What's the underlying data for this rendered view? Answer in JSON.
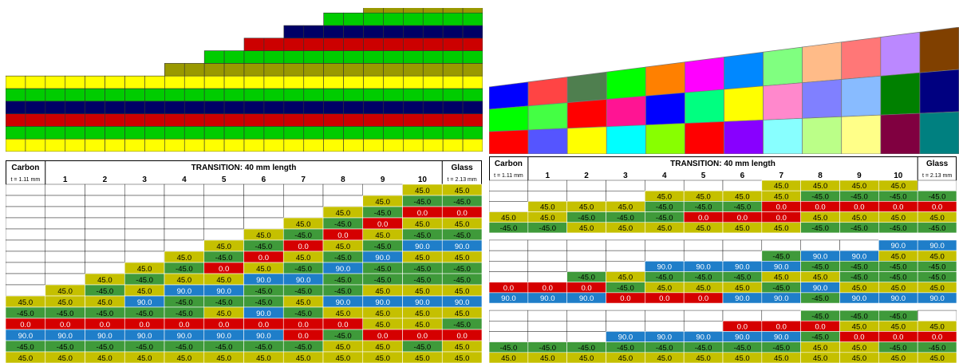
{
  "colors": {
    "Y": "#ffff00",
    "G": "#00cc00",
    "R": "#cc0000",
    "B": "#000066",
    "O": "#999900",
    "45": "#c5c000",
    "-45": "#3f9a3a",
    "0": "#d50000",
    "90": "#1f7ec9",
    "45lt": "#ffff33",
    "-45lt": "#8bcf5b",
    "90lt": "#2aa6e6",
    "white": "#ffffff",
    "black": "#000000"
  },
  "stack_diagram": {
    "columns": 24,
    "column_rise": [
      0,
      0,
      0,
      0,
      0,
      0,
      0,
      0,
      1,
      2,
      3,
      4,
      5,
      5,
      6,
      7,
      8,
      9,
      10,
      11,
      12,
      13,
      14,
      14
    ],
    "layers": [
      {
        "start": 0,
        "color": "Y"
      },
      {
        "start": 0,
        "color": "G"
      },
      {
        "start": 0,
        "color": "R"
      },
      {
        "start": 0,
        "color": "B"
      },
      {
        "start": 0,
        "color": "G"
      },
      {
        "start": 0,
        "color": "Y"
      },
      {
        "start": 8,
        "color": "O"
      },
      {
        "start": 10,
        "color": "G"
      },
      {
        "start": 12,
        "color": "R"
      },
      {
        "start": 14,
        "color": "B"
      },
      {
        "start": 16,
        "color": "G"
      },
      {
        "start": 18,
        "color": "O"
      },
      {
        "start": 20,
        "color": "G"
      },
      {
        "start": 22,
        "color": "R"
      },
      {
        "start": 23,
        "color": "O"
      }
    ]
  },
  "block_diagram": {
    "columns": 11,
    "rows": [
      [
        "#0000ff",
        "#ff4444",
        "#4f7f4f",
        "#00ff00",
        "#ff8000",
        "#ff00ff",
        "#0088ff",
        "#80ff80",
        "#ffbb88",
        "#ff7777",
        "#bb88ff",
        "#804000"
      ],
      [
        "#00ff00",
        "#44ff44",
        "#ff0000",
        "#ff1493",
        "#0000ff",
        "#00ff80",
        "#ffff00",
        "#ff88cc",
        "#8080ff",
        "#88bbff",
        "#008000",
        "#000080"
      ],
      [
        "#ff0000",
        "#5555ff",
        "#ffff00",
        "#00ffff",
        "#88ff00",
        "#ff0000",
        "#8800ff",
        "#88ffff",
        "#bbff88",
        "#ffff88",
        "#800040",
        "#008080"
      ]
    ]
  },
  "table_left": {
    "header": {
      "left": "Carbon",
      "middle": "TRANSITION: 40 mm length",
      "right": "Glass"
    },
    "subheader": {
      "left": "t = 1.11 mm",
      "cols": [
        "1",
        "2",
        "3",
        "4",
        "5",
        "6",
        "7",
        "8",
        "9",
        "10"
      ],
      "right": "t = 2.13 mm"
    },
    "rows": [
      [
        null,
        null,
        null,
        null,
        null,
        null,
        null,
        null,
        null,
        null,
        "45.0",
        "45.0"
      ],
      [
        null,
        null,
        null,
        null,
        null,
        null,
        null,
        null,
        null,
        "45.0",
        "-45.0",
        "-45.0"
      ],
      [
        null,
        null,
        null,
        null,
        null,
        null,
        null,
        null,
        "45.0",
        "-45.0",
        "0.0",
        "0.0"
      ],
      [
        null,
        null,
        null,
        null,
        null,
        null,
        null,
        "45.0",
        "-45.0",
        "0.0",
        "45.0",
        "45.0"
      ],
      [
        null,
        null,
        null,
        null,
        null,
        null,
        "45.0",
        "-45.0",
        "0.0",
        "45.0",
        "-45.0",
        "-45.0"
      ],
      [
        null,
        null,
        null,
        null,
        null,
        "45.0",
        "-45.0",
        "0.0",
        "45.0",
        "-45.0",
        "90.0",
        "90.0"
      ],
      [
        null,
        null,
        null,
        null,
        "45.0",
        "-45.0",
        "0.0",
        "45.0",
        "-45.0",
        "90.0",
        "45.0",
        "45.0"
      ],
      [
        null,
        null,
        null,
        "45.0",
        "-45.0",
        "0.0",
        "45.0",
        "-45.0",
        "90.0",
        "-45.0",
        "-45.0",
        "-45.0"
      ],
      [
        null,
        null,
        "45.0",
        "-45.0",
        "45.0",
        "45.0",
        "90.0",
        "90.0",
        "-45.0",
        "-45.0",
        "-45.0",
        "-45.0"
      ],
      [
        null,
        "45.0",
        "-45.0",
        "45.0",
        "90.0",
        "90.0",
        "-45.0",
        "-45.0",
        "-45.0",
        "45.0",
        "45.0",
        "45.0"
      ],
      [
        "45.0",
        "45.0",
        "45.0",
        "90.0",
        "-45.0",
        "-45.0",
        "-45.0",
        "45.0",
        "90.0",
        "90.0",
        "90.0",
        "90.0"
      ],
      [
        "-45.0",
        "-45.0",
        "-45.0",
        "-45.0",
        "-45.0",
        "45.0",
        "90.0",
        "-45.0",
        "45.0",
        "45.0",
        "45.0",
        "45.0"
      ],
      [
        "0.0",
        "0.0",
        "0.0",
        "0.0",
        "0.0",
        "0.0",
        "0.0",
        "0.0",
        "0.0",
        "45.0",
        "45.0",
        "-45.0"
      ],
      [
        "90.0",
        "90.0",
        "90.0",
        "90.0",
        "90.0",
        "90.0",
        "90.0",
        "0.0",
        "-45.0",
        "0.0",
        "0.0",
        "0.0"
      ],
      [
        "-45.0",
        "-45.0",
        "-45.0",
        "-45.0",
        "-45.0",
        "-45.0",
        "-45.0",
        "-45.0",
        "45.0",
        "45.0",
        "-45.0",
        "45.0"
      ],
      [
        "45.0",
        "45.0",
        "45.0",
        "45.0",
        "45.0",
        "45.0",
        "45.0",
        "45.0",
        "45.0",
        "45.0",
        "45.0",
        "45.0"
      ]
    ]
  },
  "table_right": {
    "header": {
      "left": "Carbon",
      "middle": "TRANSITION: 40 mm length",
      "right": "Glass"
    },
    "subheader": {
      "left": "t = 1.11 mm",
      "cols": [
        "1",
        "2",
        "3",
        "4",
        "5",
        "6",
        "7",
        "8",
        "9",
        "10"
      ],
      "right": "t = 2.13 mm"
    },
    "rows": [
      [
        null,
        null,
        null,
        null,
        null,
        null,
        null,
        "45.0",
        "45.0",
        "45.0",
        "45.0"
      ],
      [
        null,
        null,
        null,
        null,
        "45.0",
        "45.0",
        "45.0",
        "45.0",
        "-45.0",
        "-45.0",
        "-45.0",
        "-45.0"
      ],
      [
        null,
        "45.0",
        "45.0",
        "45.0",
        "-45.0",
        "-45.0",
        "-45.0",
        "0.0",
        "0.0",
        "0.0",
        "0.0",
        "0.0"
      ],
      [
        "45.0",
        "45.0",
        "-45.0",
        "-45.0",
        "-45.0",
        "0.0",
        "0.0",
        "0.0",
        "45.0",
        "45.0",
        "45.0",
        "45.0"
      ],
      [
        "-45.0",
        "-45.0",
        "45.0",
        "45.0",
        "45.0",
        "45.0",
        "45.0",
        "45.0",
        "-45.0",
        "-45.0",
        "-45.0",
        "-45.0"
      ],
      "gap",
      [
        null,
        null,
        null,
        null,
        null,
        null,
        null,
        null,
        null,
        null,
        "90.0",
        "90.0"
      ],
      [
        null,
        null,
        null,
        null,
        null,
        null,
        null,
        "-45.0",
        "90.0",
        "90.0",
        "45.0",
        "45.0"
      ],
      [
        null,
        null,
        null,
        null,
        "90.0",
        "90.0",
        "90.0",
        "90.0",
        "-45.0",
        "-45.0",
        "-45.0",
        "-45.0"
      ],
      [
        null,
        null,
        "-45.0",
        "45.0",
        "-45.0",
        "-45.0",
        "-45.0",
        "45.0",
        "45.0",
        "-45.0",
        "-45.0",
        "-45.0"
      ],
      [
        "0.0",
        "0.0",
        "0.0",
        "-45.0",
        "45.0",
        "45.0",
        "45.0",
        "-45.0",
        "90.0",
        "45.0",
        "45.0",
        "45.0"
      ],
      [
        "90.0",
        "90.0",
        "90.0",
        "0.0",
        "0.0",
        "0.0",
        "90.0",
        "90.0",
        "-45.0",
        "90.0",
        "90.0",
        "90.0"
      ],
      "gap",
      [
        null,
        null,
        null,
        null,
        null,
        null,
        null,
        null,
        "-45.0",
        "-45.0",
        "-45.0"
      ],
      [
        null,
        null,
        null,
        null,
        null,
        null,
        "0.0",
        "0.0",
        "0.0",
        "45.0",
        "45.0",
        "45.0"
      ],
      [
        null,
        null,
        null,
        "90.0",
        "90.0",
        "90.0",
        "90.0",
        "90.0",
        "-45.0",
        "0.0",
        "0.0",
        "0.0"
      ],
      [
        "-45.0",
        "-45.0",
        "-45.0",
        "-45.0",
        "-45.0",
        "-45.0",
        "-45.0",
        "-45.0",
        "45.0",
        "45.0",
        "-45.0",
        "-45.0"
      ],
      [
        "45.0",
        "45.0",
        "45.0",
        "45.0",
        "45.0",
        "45.0",
        "45.0",
        "45.0",
        "45.0",
        "45.0",
        "45.0",
        "45.0"
      ]
    ]
  }
}
